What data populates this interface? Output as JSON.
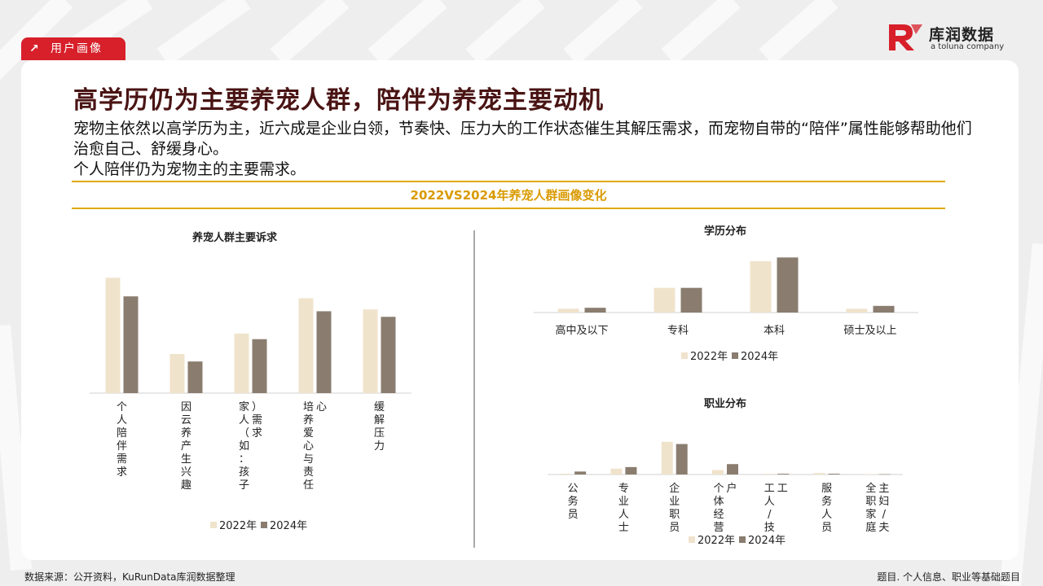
{
  "header": {
    "tag_label": "用户画像",
    "tag_icon": "arrow-up-right-icon"
  },
  "logo": {
    "name": "库润数据",
    "sub": "a toluna company",
    "color": "#d7202a"
  },
  "title": "高学历仍为主要养宠人群，陪伴为养宠主要动机",
  "description": [
    "宠物主依然以高学历为主，近六成是企业白领，节奏快、压力大的工作状态催生其解压需求，而宠物自带的“陪伴”属性能够帮助他们治愈自己、舒缓身心。",
    "个人陪伴仍为宠物主的主要需求。"
  ],
  "section_title": "2022VS2024年养宠人群画像变化",
  "colors": {
    "s2022": "#f0e3cc",
    "s2024": "#8a7d6f",
    "accent": "#e0a800",
    "title": "#4a1414"
  },
  "chart_data": [
    {
      "type": "bar",
      "title": "养宠人群主要诉求",
      "categories": [
        "个人陪伴需求",
        "因云养产生兴趣",
        "家人（如：孩子）需求",
        "培养爱心与责任心",
        "缓解压力"
      ],
      "series": [
        {
          "name": "2022年",
          "values": [
            62,
            21,
            32,
            51,
            45
          ]
        },
        {
          "name": "2024年",
          "values": [
            52,
            17,
            29,
            44,
            41
          ]
        }
      ],
      "ylim": [
        0,
        70
      ],
      "legend": "bottom"
    },
    {
      "type": "bar",
      "title": "学历分布",
      "categories": [
        "高中及以下",
        "专科",
        "本科",
        "硕士及以上"
      ],
      "series": [
        {
          "name": "2022年",
          "values": [
            2,
            13,
            27,
            2
          ]
        },
        {
          "name": "2024年",
          "values": [
            2.5,
            13,
            29,
            3.5
          ]
        }
      ],
      "ylim": [
        0,
        30
      ],
      "legend": "bottom"
    },
    {
      "type": "bar",
      "title": "职业分布",
      "categories": [
        "公务员",
        "专业人士",
        "企业职员",
        "个体经营户",
        "工人/技工",
        "服务人员",
        "全职家庭主妇/夫"
      ],
      "series": [
        {
          "name": "2022年",
          "values": [
            0.5,
            4,
            22,
            3,
            0.5,
            1,
            0.3
          ]
        },
        {
          "name": "2024年",
          "values": [
            2,
            5,
            20.5,
            7,
            0.5,
            0.5,
            0.2
          ]
        }
      ],
      "ylim": [
        0,
        23
      ],
      "legend": "bottom"
    }
  ],
  "footer": {
    "source": "数据来源：公开资料，KuRunData库润数据整理",
    "note": "题目. 个人信息、职业等基础题目"
  }
}
